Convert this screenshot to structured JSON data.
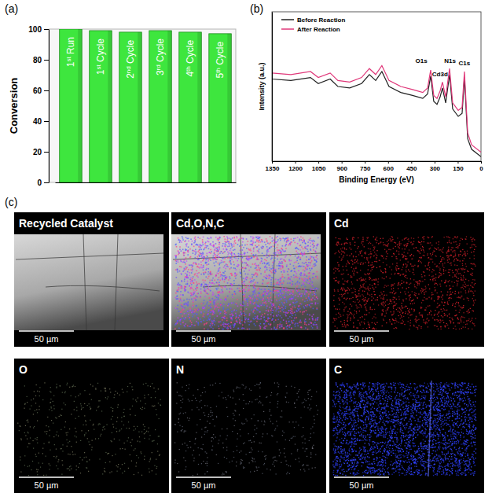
{
  "chart_data": [
    {
      "type": "bar",
      "title": "(a)",
      "y_label": "Conversion",
      "categories": [
        "1st Run",
        "1st Cycle",
        "2nd Cycle",
        "3rd Cycle",
        "4th Cycle",
        "5th Cycle"
      ],
      "values": [
        100,
        99,
        98,
        99,
        98,
        97
      ],
      "color": "#3ee63e",
      "ylim": [
        0,
        100
      ],
      "yticks": [
        0,
        20,
        40,
        60,
        80,
        100
      ],
      "tick_labels": "y"
    },
    {
      "type": "line",
      "title": "(b)",
      "x_label": "Binding Energy (eV)",
      "y_label": "Intensity (a.u.)",
      "x": [
        1350,
        1228,
        1101,
        1051,
        974,
        924,
        848,
        771,
        721,
        680,
        640,
        594,
        518,
        442,
        376,
        345,
        325,
        305,
        284,
        264,
        249,
        228,
        203,
        183,
        147,
        122,
        107,
        86,
        61,
        0
      ],
      "series": [
        {
          "name": "Before Reaction",
          "color": "#222222",
          "values": [
            55,
            54,
            56,
            52,
            55,
            50,
            49,
            52,
            58,
            54,
            60,
            50,
            46,
            44,
            42,
            45,
            57,
            40,
            38,
            43,
            49,
            39,
            58,
            35,
            30,
            32,
            56,
            15,
            8,
            3
          ]
        },
        {
          "name": "After Reaction",
          "color": "#e0387a",
          "values": [
            59,
            58,
            60,
            56,
            59,
            54,
            53,
            56,
            62,
            58,
            64,
            54,
            50,
            48,
            46,
            49,
            61,
            44,
            42,
            47,
            53,
            43,
            62,
            39,
            34,
            36,
            60,
            19,
            11,
            6
          ]
        }
      ],
      "xlim": [
        1350,
        0
      ],
      "xticks": [
        1350,
        1200,
        1050,
        900,
        750,
        600,
        450,
        300,
        150,
        0
      ],
      "ylim": [
        0,
        100
      ],
      "tick_labels": "x",
      "legend": "upper left",
      "annotations": [
        {
          "text": "O1s",
          "x": 385,
          "y": 66
        },
        {
          "text": "Cd3d",
          "x": 265,
          "y": 57
        },
        {
          "text": "N1s",
          "x": 200,
          "y": 66
        },
        {
          "text": "C1s",
          "x": 107,
          "y": 64
        }
      ]
    }
  ],
  "micrographs": {
    "label": "(c)",
    "panels": [
      {
        "title": "Recycled Catalyst",
        "scale_bar": "50 µm"
      },
      {
        "title": "Cd,O,N,C",
        "scale_bar": "50 µm"
      },
      {
        "title": "Cd",
        "scale_bar": "50 µm"
      },
      {
        "title": "O",
        "scale_bar": "50 µm"
      },
      {
        "title": "N",
        "scale_bar": "50 µm"
      },
      {
        "title": "C",
        "scale_bar": "50 µm"
      }
    ]
  }
}
